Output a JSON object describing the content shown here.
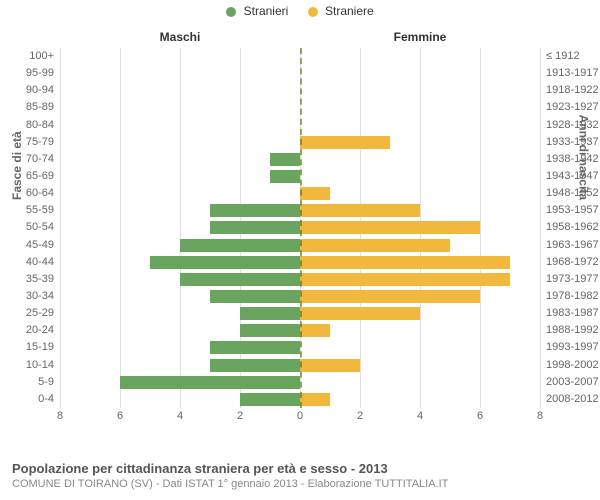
{
  "chart": {
    "type": "population-pyramid",
    "background_color": "#ffffff",
    "grid_color": "#e0e0e0",
    "centerline_color": "#666600",
    "text_color": "#666666",
    "legend": {
      "male": {
        "label": "Stranieri",
        "color": "#6aa55f"
      },
      "female": {
        "label": "Straniere",
        "color": "#f2b83e"
      }
    },
    "column_headers": {
      "left": "Maschi",
      "right": "Femmine"
    },
    "y_axis": {
      "left_title": "Fasce di età",
      "right_title": "Anni di nascita"
    },
    "x_axis": {
      "max": 8,
      "tick_step": 2,
      "ticks_left": [
        8,
        6,
        4,
        2,
        0
      ],
      "ticks_right": [
        2,
        4,
        6,
        8
      ]
    },
    "rows": [
      {
        "age": "100+",
        "birth": "≤ 1912",
        "m": 0,
        "f": 0
      },
      {
        "age": "95-99",
        "birth": "1913-1917",
        "m": 0,
        "f": 0
      },
      {
        "age": "90-94",
        "birth": "1918-1922",
        "m": 0,
        "f": 0
      },
      {
        "age": "85-89",
        "birth": "1923-1927",
        "m": 0,
        "f": 0
      },
      {
        "age": "80-84",
        "birth": "1928-1932",
        "m": 0,
        "f": 0
      },
      {
        "age": "75-79",
        "birth": "1933-1937",
        "m": 0,
        "f": 3
      },
      {
        "age": "70-74",
        "birth": "1938-1942",
        "m": 1,
        "f": 0
      },
      {
        "age": "65-69",
        "birth": "1943-1947",
        "m": 1,
        "f": 0
      },
      {
        "age": "60-64",
        "birth": "1948-1952",
        "m": 0,
        "f": 1
      },
      {
        "age": "55-59",
        "birth": "1953-1957",
        "m": 3,
        "f": 4
      },
      {
        "age": "50-54",
        "birth": "1958-1962",
        "m": 3,
        "f": 6
      },
      {
        "age": "45-49",
        "birth": "1963-1967",
        "m": 4,
        "f": 5
      },
      {
        "age": "40-44",
        "birth": "1968-1972",
        "m": 5,
        "f": 7
      },
      {
        "age": "35-39",
        "birth": "1973-1977",
        "m": 4,
        "f": 7
      },
      {
        "age": "30-34",
        "birth": "1978-1982",
        "m": 3,
        "f": 6
      },
      {
        "age": "25-29",
        "birth": "1983-1987",
        "m": 2,
        "f": 4
      },
      {
        "age": "20-24",
        "birth": "1988-1992",
        "m": 2,
        "f": 1
      },
      {
        "age": "15-19",
        "birth": "1993-1997",
        "m": 3,
        "f": 0
      },
      {
        "age": "10-14",
        "birth": "1998-2002",
        "m": 3,
        "f": 2
      },
      {
        "age": "5-9",
        "birth": "2003-2007",
        "m": 6,
        "f": 0
      },
      {
        "age": "0-4",
        "birth": "2008-2012",
        "m": 2,
        "f": 1
      }
    ],
    "footer": {
      "title": "Popolazione per cittadinanza straniera per età e sesso - 2013",
      "subtitle": "COMUNE DI TOIRANO (SV) - Dati ISTAT 1° gennaio 2013 - Elaborazione TUTTITALIA.IT"
    }
  }
}
